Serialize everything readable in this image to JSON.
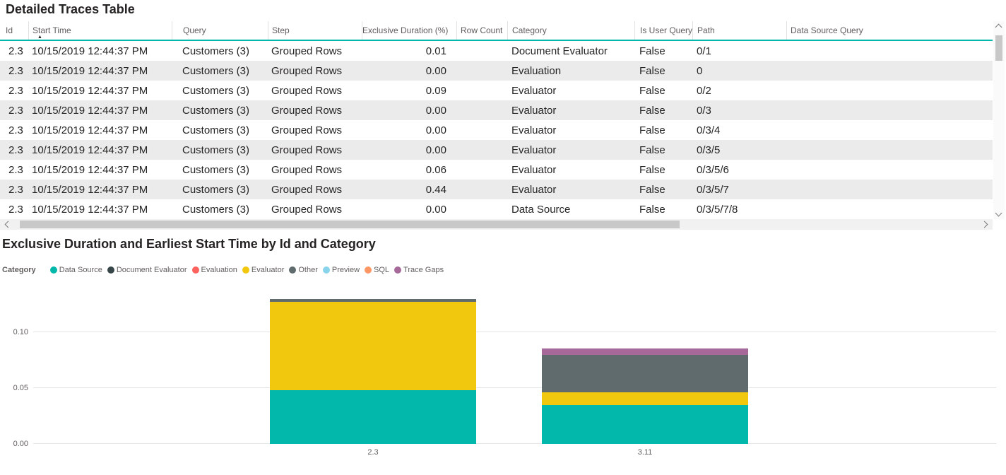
{
  "table": {
    "title": "Detailed Traces Table",
    "columns": [
      {
        "key": "id",
        "label": "Id",
        "sorted": false
      },
      {
        "key": "start_time",
        "label": "Start Time",
        "sorted": true
      },
      {
        "key": "query",
        "label": "Query",
        "sorted": false
      },
      {
        "key": "step",
        "label": "Step",
        "sorted": false
      },
      {
        "key": "exclusive_duration",
        "label": "Exclusive Duration (%)",
        "sorted": false
      },
      {
        "key": "row_count",
        "label": "Row Count",
        "sorted": false
      },
      {
        "key": "category",
        "label": "Category",
        "sorted": false
      },
      {
        "key": "is_user_query",
        "label": "Is User Query",
        "sorted": false
      },
      {
        "key": "path",
        "label": "Path",
        "sorted": false
      },
      {
        "key": "data_source_query",
        "label": "Data Source Query",
        "sorted": false
      }
    ],
    "rows": [
      [
        "2.3",
        "10/15/2019 12:44:37 PM",
        "Customers (3)",
        "Grouped Rows",
        "0.01",
        "",
        "Document Evaluator",
        "False",
        "0/1",
        ""
      ],
      [
        "2.3",
        "10/15/2019 12:44:37 PM",
        "Customers (3)",
        "Grouped Rows",
        "0.00",
        "",
        "Evaluation",
        "False",
        "0",
        ""
      ],
      [
        "2.3",
        "10/15/2019 12:44:37 PM",
        "Customers (3)",
        "Grouped Rows",
        "0.09",
        "",
        "Evaluator",
        "False",
        "0/2",
        ""
      ],
      [
        "2.3",
        "10/15/2019 12:44:37 PM",
        "Customers (3)",
        "Grouped Rows",
        "0.00",
        "",
        "Evaluator",
        "False",
        "0/3",
        ""
      ],
      [
        "2.3",
        "10/15/2019 12:44:37 PM",
        "Customers (3)",
        "Grouped Rows",
        "0.00",
        "",
        "Evaluator",
        "False",
        "0/3/4",
        ""
      ],
      [
        "2.3",
        "10/15/2019 12:44:37 PM",
        "Customers (3)",
        "Grouped Rows",
        "0.00",
        "",
        "Evaluator",
        "False",
        "0/3/5",
        ""
      ],
      [
        "2.3",
        "10/15/2019 12:44:37 PM",
        "Customers (3)",
        "Grouped Rows",
        "0.06",
        "",
        "Evaluator",
        "False",
        "0/3/5/6",
        ""
      ],
      [
        "2.3",
        "10/15/2019 12:44:37 PM",
        "Customers (3)",
        "Grouped Rows",
        "0.44",
        "",
        "Evaluator",
        "False",
        "0/3/5/7",
        ""
      ],
      [
        "2.3",
        "10/15/2019 12:44:37 PM",
        "Customers (3)",
        "Grouped Rows",
        "0.00",
        "",
        "Data Source",
        "False",
        "0/3/5/7/8",
        ""
      ]
    ],
    "accent_color": "#01B8AA"
  },
  "chart": {
    "title": "Exclusive Duration and Earliest Start Time by Id and Category",
    "legend_title": "Category"
  },
  "chart_data": {
    "type": "bar",
    "stacked": true,
    "title": "Exclusive Duration and Earliest Start Time by Id and Category",
    "categories": [
      "2.3",
      "3.11"
    ],
    "series": [
      {
        "name": "Data Source",
        "color": "#01B8AA",
        "values": [
          0.048,
          0.035
        ]
      },
      {
        "name": "Document Evaluator",
        "color": "#374649",
        "values": [
          0,
          0
        ]
      },
      {
        "name": "Evaluation",
        "color": "#FD625E",
        "values": [
          0,
          0
        ]
      },
      {
        "name": "Evaluator",
        "color": "#F2C80F",
        "values": [
          0.0795,
          0.0115
        ]
      },
      {
        "name": "Other",
        "color": "#5F6B6D",
        "values": [
          0.002,
          0.0335
        ]
      },
      {
        "name": "Preview",
        "color": "#8AD4EB",
        "values": [
          0,
          0
        ]
      },
      {
        "name": "SQL",
        "color": "#FE9666",
        "values": [
          0,
          0
        ]
      },
      {
        "name": "Trace Gaps",
        "color": "#A66999",
        "values": [
          0,
          0.0055
        ]
      }
    ],
    "xlabel": "",
    "ylabel": "",
    "ylim": [
      0,
      0.144
    ],
    "y_ticks": [
      0.0,
      0.05,
      0.1
    ],
    "y_tick_labels": [
      "0.00",
      "0.05",
      "0.10"
    ],
    "grid": true,
    "legend_position": "top-left"
  }
}
